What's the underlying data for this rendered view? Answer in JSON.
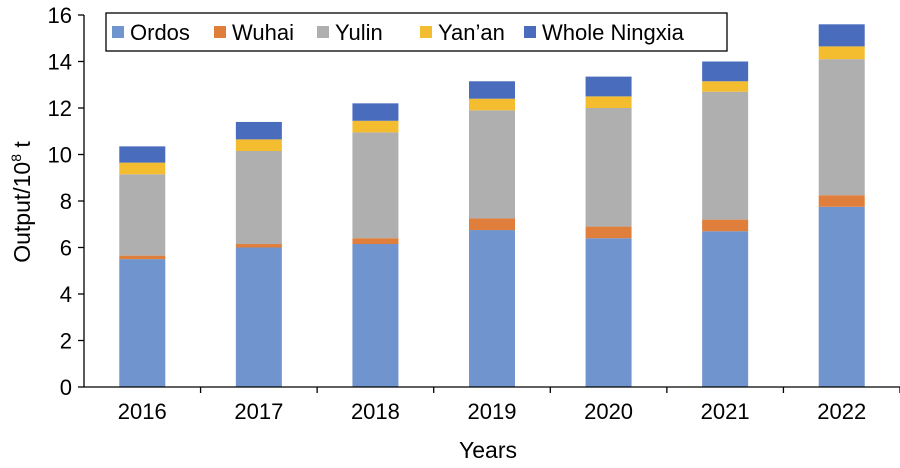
{
  "chart_data": {
    "type": "bar",
    "stacked": true,
    "categories": [
      "2016",
      "2017",
      "2018",
      "2019",
      "2020",
      "2021",
      "2022"
    ],
    "series": [
      {
        "name": "Ordos",
        "color": "#7094cd",
        "values": [
          5.5,
          6.0,
          6.15,
          6.75,
          6.4,
          6.7,
          7.75
        ]
      },
      {
        "name": "Wuhai",
        "color": "#e07f3b",
        "values": [
          0.15,
          0.15,
          0.25,
          0.5,
          0.5,
          0.5,
          0.5
        ]
      },
      {
        "name": "Yulin",
        "color": "#afafaf",
        "values": [
          3.5,
          4.0,
          4.55,
          4.65,
          5.1,
          5.5,
          5.85
        ]
      },
      {
        "name": "Yan’an",
        "color": "#f4bd2f",
        "values": [
          0.5,
          0.5,
          0.5,
          0.5,
          0.5,
          0.45,
          0.55
        ]
      },
      {
        "name": "Whole Ningxia",
        "color": "#4a6cbd",
        "values": [
          0.7,
          0.75,
          0.75,
          0.75,
          0.85,
          0.85,
          0.95
        ]
      }
    ],
    "xlabel": "Years",
    "ylabel_main": "Output/10",
    "ylabel_sup": "8",
    "ylabel_unit": " t",
    "ylim": [
      0,
      16
    ],
    "yticks": [
      "0",
      "2",
      "4",
      "6",
      "8",
      "10",
      "12",
      "14",
      "16"
    ],
    "grid": false,
    "legend_position": "top-left"
  }
}
